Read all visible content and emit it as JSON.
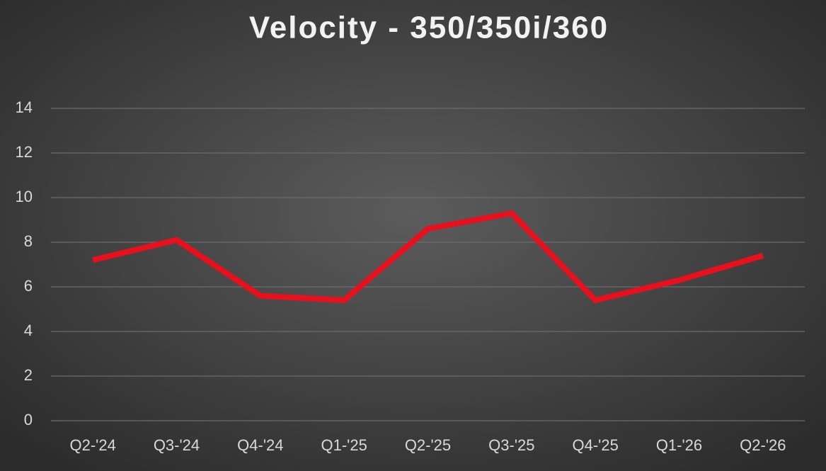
{
  "chart_data": {
    "type": "line",
    "title": "Velocity - 350/350i/360",
    "categories": [
      "Q2-'24",
      "Q3-'24",
      "Q4-'24",
      "Q1-'25",
      "Q2-'25",
      "Q3-'25",
      "Q4-'25",
      "Q1-'26",
      "Q2-'26"
    ],
    "values": [
      7.2,
      8.1,
      5.6,
      5.4,
      8.6,
      9.3,
      5.4,
      6.3,
      7.4
    ],
    "color": "#e8101c",
    "ylim": [
      0,
      14
    ],
    "yticks": [
      0,
      2,
      4,
      6,
      8,
      10,
      12,
      14
    ],
    "grid": true
  }
}
